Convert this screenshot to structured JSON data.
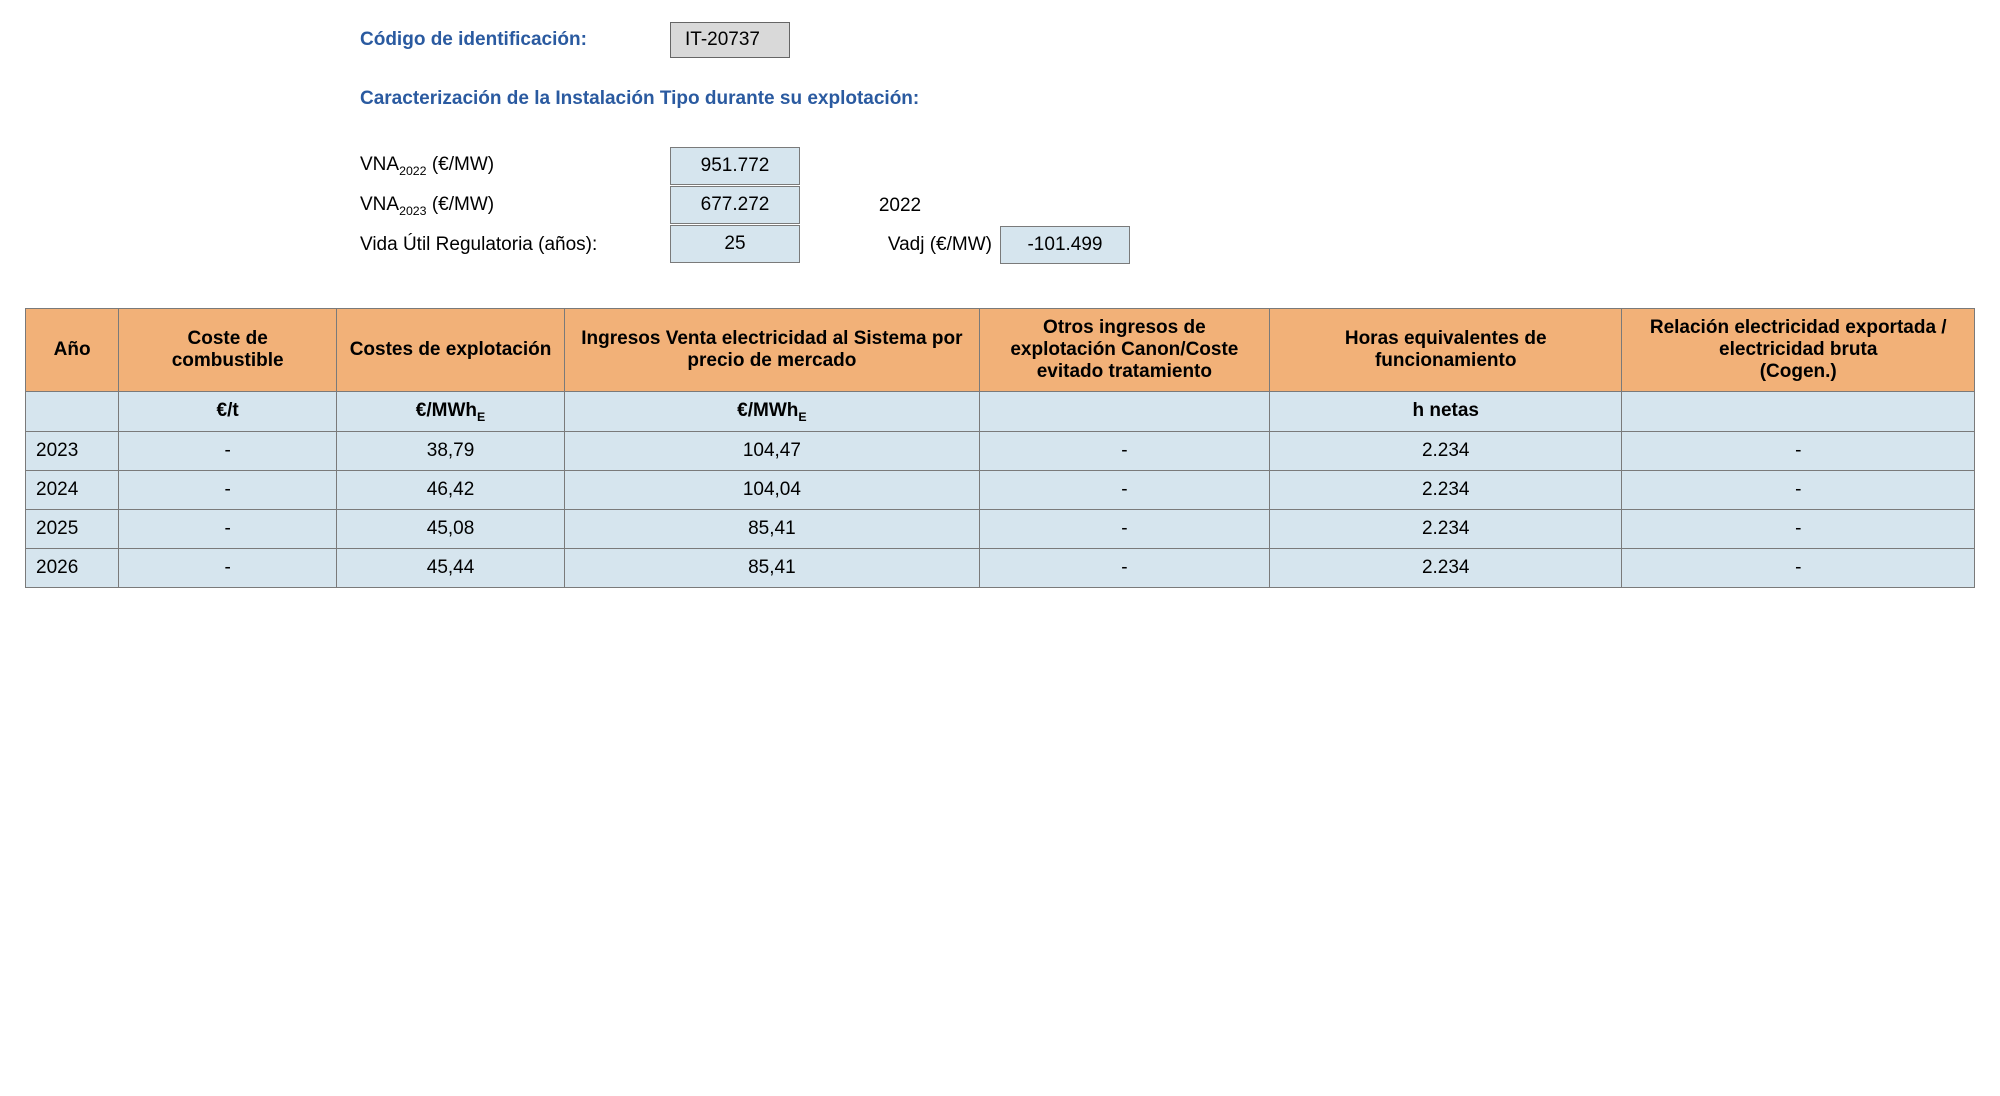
{
  "header": {
    "id_label": "Código de identificación:",
    "id_value": "IT-20737",
    "section_title": "Caracterización de la Instalación Tipo durante su explotación:"
  },
  "params": {
    "vna2022_label_pre": "VNA",
    "vna2022_sub": "2022",
    "vna_unit": " (€/MW)",
    "vna2022_value": "951.772",
    "vna2023_label_pre": "VNA",
    "vna2023_sub": "2023",
    "vna2023_value": "677.272",
    "year_ref": "2022",
    "vida_label": "Vida Útil Regulatoria (años):",
    "vida_value": "25",
    "vadj_label": "Vadj (€/MW)",
    "vadj_value": "-101.499"
  },
  "table": {
    "headers": {
      "year": "Año",
      "fuel": "Coste de combustible",
      "opex": "Costes de explotación",
      "revenue": "Ingresos Venta electricidad al Sistema por precio de mercado",
      "other": "Otros ingresos de explotación Canon/Coste evitado tratamiento",
      "hours": "Horas equivalentes de funcionamiento",
      "ratio": "Relación electricidad exportada / electricidad bruta\n(Cogen.)"
    },
    "units": {
      "year": "",
      "fuel": "€/t",
      "opex_pre": "€/MWh",
      "opex_sub": "E",
      "revenue_pre": "€/MWh",
      "revenue_sub": "E",
      "other": "",
      "hours": "h netas",
      "ratio": ""
    },
    "rows": [
      {
        "year": "2023",
        "fuel": "-",
        "opex": "38,79",
        "revenue": "104,47",
        "other": "-",
        "hours": "2.234",
        "ratio": "-"
      },
      {
        "year": "2024",
        "fuel": "-",
        "opex": "46,42",
        "revenue": "104,04",
        "other": "-",
        "hours": "2.234",
        "ratio": "-"
      },
      {
        "year": "2025",
        "fuel": "-",
        "opex": "45,08",
        "revenue": "85,41",
        "other": "-",
        "hours": "2.234",
        "ratio": "-"
      },
      {
        "year": "2026",
        "fuel": "-",
        "opex": "45,44",
        "revenue": "85,41",
        "other": "-",
        "hours": "2.234",
        "ratio": "-"
      }
    ]
  },
  "colors": {
    "header_bg": "#f2b178",
    "cell_bg": "#d6e5ee",
    "idbox_bg": "#d9d9d9",
    "border": "#7a7a7a",
    "label_blue": "#2a5aa0",
    "text": "#000000",
    "page_bg": "#ffffff"
  }
}
